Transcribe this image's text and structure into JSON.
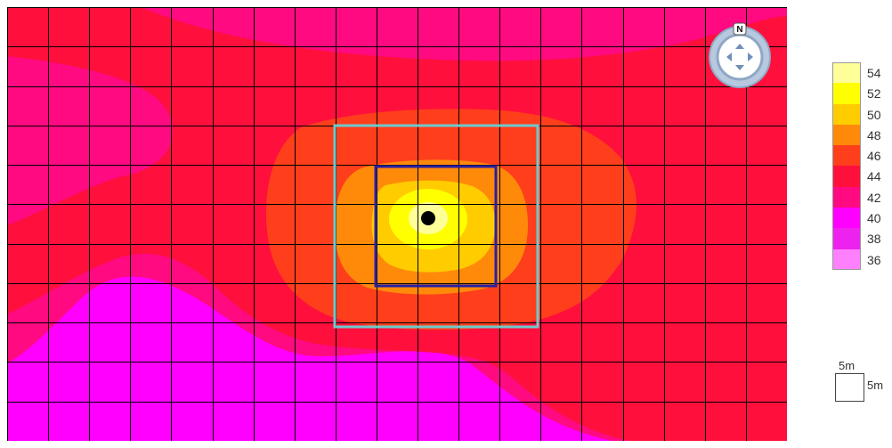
{
  "map": {
    "grid": {
      "columns": 19,
      "rows": 11
    },
    "colors": {
      "c36": "#ff80ff",
      "c38": "#ee22ee",
      "c40": "#ff00ff",
      "c42": "#ff0a80",
      "c44": "#ff0f3c",
      "c46": "#ff3e1c",
      "c48": "#ff8a0a",
      "c50": "#ffcc00",
      "c52": "#ffff00",
      "c54": "#ffff99",
      "gridline": "#000000",
      "outer_square": "#6dcacc",
      "inner_square": "#2a1fa0",
      "source_point": "#000000"
    }
  },
  "compass": {
    "north_label": "N",
    "icon": "pan-navigator-icon"
  },
  "legend": {
    "entries": [
      {
        "label": "54",
        "color": "#ffff99"
      },
      {
        "label": "52",
        "color": "#ffff00"
      },
      {
        "label": "50",
        "color": "#ffcc00"
      },
      {
        "label": "48",
        "color": "#ff8a0a"
      },
      {
        "label": "46",
        "color": "#ff3e1c"
      },
      {
        "label": "44",
        "color": "#ff0f3c"
      },
      {
        "label": "42",
        "color": "#ff0a80"
      },
      {
        "label": "40",
        "color": "#ff00ff"
      },
      {
        "label": "38",
        "color": "#ee22ee"
      },
      {
        "label": "36",
        "color": "#ff80ff"
      }
    ]
  },
  "scale": {
    "width_label": "5m",
    "height_label": "5m"
  }
}
